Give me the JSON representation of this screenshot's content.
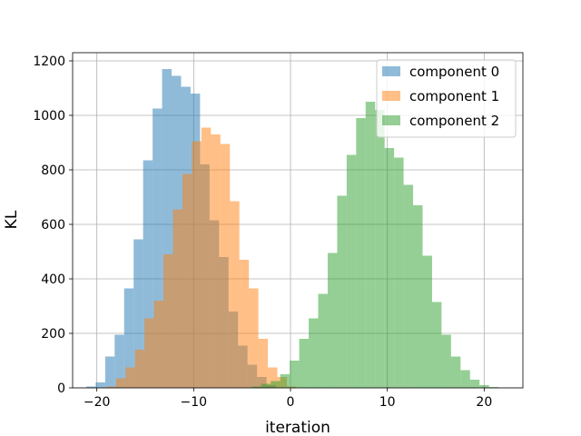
{
  "chart_data": {
    "type": "bar",
    "subtype": "overlapping-histogram",
    "title": "",
    "xlabel": "iteration",
    "ylabel": "KL",
    "xlim": [
      -22.5,
      24
    ],
    "ylim": [
      0,
      1230
    ],
    "xticks": [
      -20,
      -10,
      0,
      10,
      20
    ],
    "yticks": [
      0,
      200,
      400,
      600,
      800,
      1000,
      1200
    ],
    "grid": true,
    "legend_position": "top-right",
    "bar_opacity": 0.5,
    "series": [
      {
        "name": "component 0",
        "color": "#1f77b4",
        "bin_edges": [
          -21.1,
          -20.12,
          -19.14,
          -18.16,
          -17.18,
          -16.2,
          -15.22,
          -14.24,
          -13.26,
          -12.28,
          -11.3,
          -10.32,
          -9.34,
          -8.36,
          -7.38,
          -6.4,
          -5.42,
          -4.44,
          -3.46,
          -2.48,
          -1.5
        ],
        "counts": [
          5,
          20,
          115,
          195,
          365,
          545,
          835,
          1025,
          1170,
          1145,
          1105,
          1080,
          820,
          615,
          480,
          280,
          155,
          85,
          40,
          10
        ]
      },
      {
        "name": "component 1",
        "color": "#ff7f0e",
        "bin_edges": [
          -19.0,
          -18.02,
          -17.04,
          -16.06,
          -15.08,
          -14.1,
          -13.12,
          -12.14,
          -11.16,
          -10.18,
          -9.2,
          -8.22,
          -7.24,
          -6.26,
          -5.28,
          -4.3,
          -3.32,
          -2.34,
          -1.36,
          -0.38,
          0.6
        ],
        "counts": [
          5,
          35,
          75,
          140,
          255,
          320,
          490,
          655,
          785,
          905,
          955,
          930,
          895,
          685,
          470,
          365,
          180,
          75,
          40,
          5
        ]
      },
      {
        "name": "component 2",
        "color": "#2ca02c",
        "bin_edges": [
          -4.0,
          -3.02,
          -2.04,
          -1.06,
          -0.08,
          0.9,
          1.88,
          2.86,
          3.84,
          4.82,
          5.8,
          6.78,
          7.76,
          8.74,
          9.72,
          10.7,
          11.68,
          12.66,
          13.64,
          14.62,
          15.6,
          16.58,
          17.56,
          18.54,
          19.52,
          20.5,
          21.48
        ],
        "counts": [
          5,
          15,
          25,
          50,
          100,
          180,
          255,
          345,
          495,
          705,
          855,
          990,
          1050,
          1020,
          880,
          845,
          745,
          670,
          485,
          315,
          195,
          115,
          65,
          30,
          10,
          3
        ]
      }
    ]
  }
}
